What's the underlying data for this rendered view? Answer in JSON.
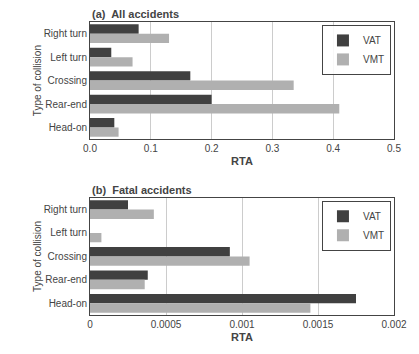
{
  "chart_data": [
    {
      "type": "bar",
      "orientation": "horizontal",
      "title": "(a)  All accidents",
      "categories": [
        "Right turn",
        "Left turn",
        "Crossing",
        "Rear-end",
        "Head-on"
      ],
      "series": [
        {
          "name": "VAT",
          "color": "#404040",
          "values": [
            0.08,
            0.035,
            0.165,
            0.2,
            0.04
          ]
        },
        {
          "name": "VMT",
          "color": "#b0b0b0",
          "values": [
            0.13,
            0.07,
            0.335,
            0.41,
            0.047
          ]
        }
      ],
      "x_label": "RTA",
      "y_label": "Type of collision",
      "xlim": [
        0,
        0.5
      ],
      "xticks": [
        {
          "value": 0,
          "label": "0.0"
        },
        0.1,
        0.2,
        0.3,
        0.4,
        0.5
      ],
      "grid": true,
      "legend": "upper right"
    },
    {
      "type": "bar",
      "orientation": "horizontal",
      "title": "(b)  Fatal accidents",
      "categories": [
        "Right turn",
        "Left turn",
        "Crossing",
        "Rear-end",
        "Head-on"
      ],
      "series": [
        {
          "name": "VAT",
          "color": "#404040",
          "values": [
            0.00025,
            0.0,
            0.00092,
            0.00038,
            0.00175
          ]
        },
        {
          "name": "VMT",
          "color": "#b0b0b0",
          "values": [
            0.00042,
            7.5e-05,
            0.00105,
            0.00036,
            0.00145
          ]
        }
      ],
      "x_label": "RTA",
      "y_label": "Type of collision",
      "xlim": [
        0,
        0.002
      ],
      "xticks": [
        0,
        0.0005,
        0.001,
        0.0015,
        0.002
      ],
      "grid": true,
      "legend": "upper right"
    }
  ]
}
